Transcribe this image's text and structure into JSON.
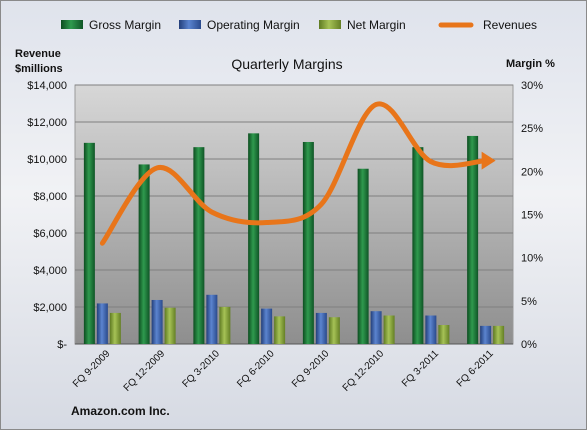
{
  "chart_data": {
    "type": "bar",
    "title": "Quarterly Margins",
    "footer": "Amazon.com Inc.",
    "left_axis": {
      "title_line1": "Revenue",
      "title_line2": "$millions",
      "range": [
        0,
        14000
      ],
      "ticks": [
        0,
        2000,
        4000,
        6000,
        8000,
        10000,
        12000,
        14000
      ],
      "tick_labels": [
        "$-",
        "$2,000",
        "$4,000",
        "$6,000",
        "$8,000",
        "$10,000",
        "$12,000",
        "$14,000"
      ]
    },
    "right_axis": {
      "title": "Margin %",
      "range": [
        0,
        30
      ],
      "ticks": [
        0,
        5,
        10,
        15,
        20,
        25,
        30
      ],
      "tick_labels": [
        "0%",
        "5%",
        "10%",
        "15%",
        "20%",
        "25%",
        "30%"
      ]
    },
    "categories": [
      "FQ 9-2009",
      "FQ 12-2009",
      "FQ 3-2010",
      "FQ 6-2010",
      "FQ 9-2010",
      "FQ 12-2010",
      "FQ 3-2011",
      "FQ 6-2011"
    ],
    "series": [
      {
        "name": "Gross Margin",
        "kind": "bar",
        "axis": "right",
        "color": "#1f7a3a",
        "values": [
          23.3,
          20.8,
          22.8,
          24.4,
          23.4,
          20.3,
          22.8,
          24.1
        ]
      },
      {
        "name": "Operating Margin",
        "kind": "bar",
        "axis": "right",
        "color": "#3f66b0",
        "values": [
          4.7,
          5.1,
          5.7,
          4.1,
          3.6,
          3.8,
          3.3,
          2.1
        ]
      },
      {
        "name": "Net Margin",
        "kind": "bar",
        "axis": "right",
        "color": "#8dac3a",
        "values": [
          3.6,
          4.2,
          4.3,
          3.2,
          3.1,
          3.3,
          2.2,
          2.1
        ]
      },
      {
        "name": "Revenues",
        "kind": "line",
        "axis": "left",
        "color": "#e8751a",
        "values": [
          5449,
          9520,
          7131,
          6566,
          7560,
          12948,
          9857,
          9913
        ]
      }
    ],
    "grid": true,
    "legend_position": "top"
  }
}
